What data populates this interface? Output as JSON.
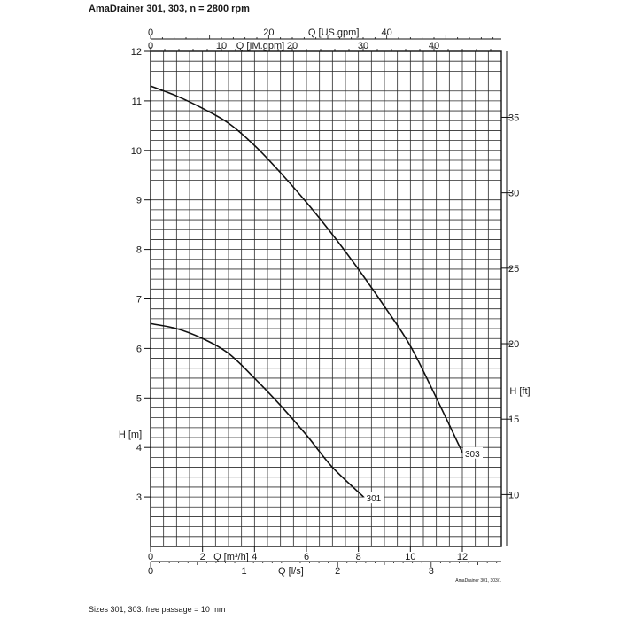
{
  "header": {
    "title": "AmaDrainer 301, 303, n = 2800 rpm"
  },
  "footer": {
    "note": "Sizes 301, 303: free passage = 10 mm",
    "code": "AmaDrainer 301, 303/1"
  },
  "chart_data": {
    "type": "line",
    "title": "AmaDrainer 301, 303, n = 2800 rpm",
    "grid": true,
    "axes": {
      "x_m3h": {
        "label": "Q [m³/h]",
        "range": [
          0,
          13.5
        ],
        "ticks": [
          0,
          2,
          4,
          6,
          8,
          10,
          12
        ],
        "position": "bottom"
      },
      "x_ls": {
        "label": "Q [l/s]",
        "range": [
          0,
          3.75
        ],
        "ticks": [
          0,
          1,
          2,
          3
        ],
        "position": "bottom"
      },
      "x_usgpm": {
        "label": "Q [US.gpm]",
        "range": [
          0,
          59.4
        ],
        "ticks": [
          0,
          20,
          40
        ],
        "position": "top"
      },
      "x_imgpm": {
        "label": "Q [IM.gpm]",
        "range": [
          0,
          49.5
        ],
        "ticks": [
          0,
          10,
          20,
          30,
          40
        ],
        "position": "top"
      },
      "y_m": {
        "label": "H [m]",
        "range": [
          2,
          12
        ],
        "ticks": [
          3,
          4,
          5,
          6,
          7,
          8,
          9,
          10,
          11,
          12
        ],
        "position": "left"
      },
      "y_ft": {
        "label": "H [ft]",
        "range": [
          6.56,
          39.37
        ],
        "ticks": [
          10,
          15,
          20,
          25,
          30,
          35
        ],
        "position": "right"
      }
    },
    "series": [
      {
        "name": "301",
        "x": [
          0,
          1,
          2,
          3,
          4,
          5,
          6,
          7,
          8.2
        ],
        "y": [
          6.5,
          6.4,
          6.2,
          5.9,
          5.4,
          4.85,
          4.25,
          3.6,
          3.0
        ]
      },
      {
        "name": "303",
        "x": [
          0,
          1,
          2,
          3,
          4,
          5,
          6,
          7,
          8,
          9,
          10,
          11,
          12
        ],
        "y": [
          11.3,
          11.1,
          10.85,
          10.55,
          10.1,
          9.55,
          8.95,
          8.3,
          7.6,
          6.85,
          6.05,
          5.0,
          3.9
        ]
      }
    ]
  }
}
